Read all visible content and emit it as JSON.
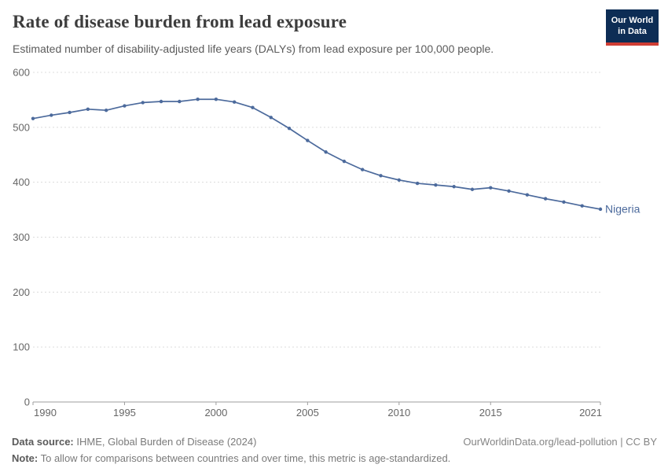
{
  "header": {
    "title": "Rate of disease burden from lead exposure",
    "subtitle": "Estimated number of disability-adjusted life years (DALYs) from lead exposure per 100,000 people.",
    "logo": {
      "line1": "Our World",
      "line2": "in Data",
      "bg_color": "#0d2d55",
      "bar_color": "#cf3d34"
    }
  },
  "chart_data": {
    "type": "line",
    "title": "Rate of disease burden from lead exposure",
    "xlabel": "",
    "ylabel": "DALYs from lead exposure per 100,000 people",
    "ylim": [
      0,
      600
    ],
    "yticks": [
      0,
      100,
      200,
      300,
      400,
      500,
      600
    ],
    "xticks": [
      1990,
      1995,
      2000,
      2005,
      2010,
      2015,
      2021
    ],
    "grid": "horizontal-dashed",
    "legend_position": "end-of-line",
    "colors": {
      "grid": "#dcdcdc",
      "axis": "#9e9e9e",
      "tick_text": "#666666"
    },
    "x": [
      1990,
      1991,
      1992,
      1993,
      1994,
      1995,
      1996,
      1997,
      1998,
      1999,
      2000,
      2001,
      2002,
      2003,
      2004,
      2005,
      2006,
      2007,
      2008,
      2009,
      2010,
      2011,
      2012,
      2013,
      2014,
      2015,
      2016,
      2017,
      2018,
      2019,
      2020,
      2021
    ],
    "series": [
      {
        "name": "Nigeria",
        "color": "#4C6A9C",
        "values": [
          516,
          522,
          527,
          533,
          531,
          539,
          545,
          547,
          547,
          551,
          551,
          546,
          536,
          518,
          498,
          476,
          455,
          438,
          423,
          412,
          404,
          398,
          395,
          392,
          387,
          390,
          384,
          377,
          370,
          364,
          357,
          351
        ]
      }
    ]
  },
  "footer": {
    "datasource_label": "Data source:",
    "datasource_value": " IHME, Global Burden of Disease (2024)",
    "rights": "OurWorldinData.org/lead-pollution | CC BY",
    "note_label": "Note:",
    "note_value": " To allow for comparisons between countries and over time, this metric is age-standardized."
  }
}
